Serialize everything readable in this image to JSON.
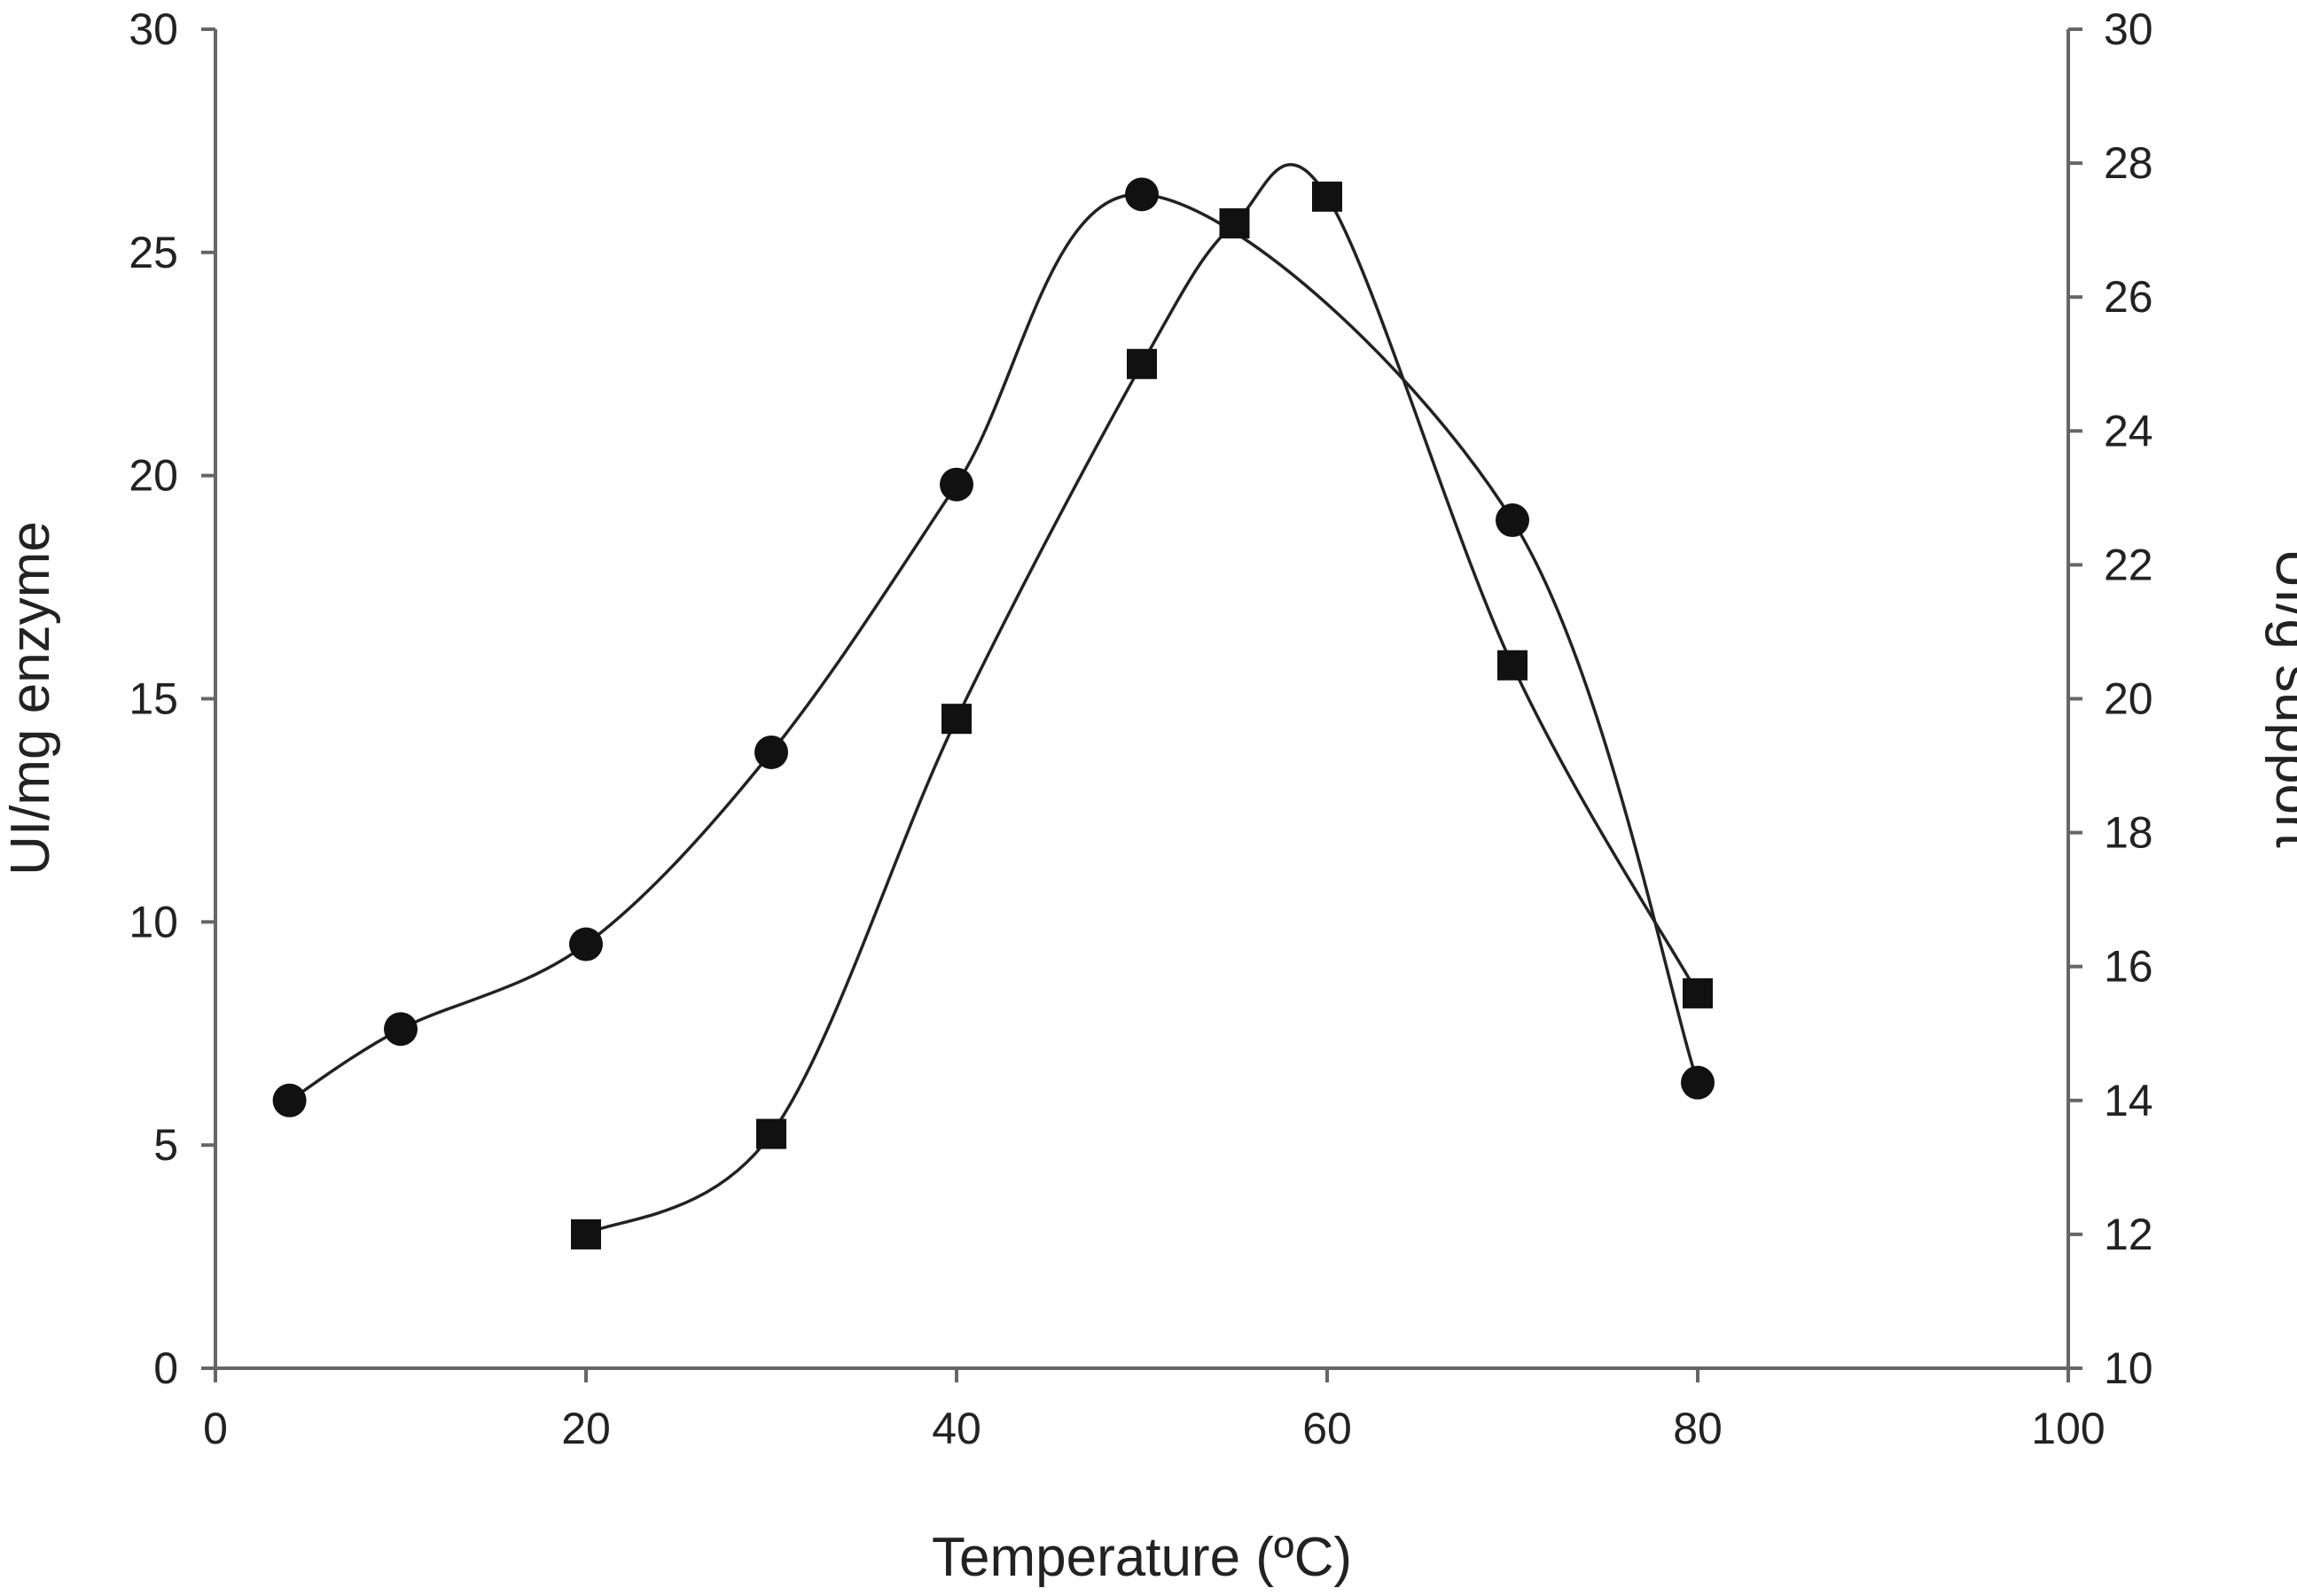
{
  "chart_data": {
    "type": "line",
    "title": "",
    "xlabel": "Temperature (ºC)",
    "ylabel_left": "UI/mg enzyme",
    "ylabel_right": "UI/g support",
    "xlim": [
      0,
      100
    ],
    "ylim_left": [
      0,
      30
    ],
    "ylim_right": [
      10,
      30
    ],
    "x_ticks": [
      "0",
      "20",
      "40",
      "60",
      "80",
      "100"
    ],
    "y_left_ticks": [
      "0",
      "5",
      "10",
      "15",
      "20",
      "25",
      "30"
    ],
    "y_right_ticks": [
      "10",
      "12",
      "14",
      "16",
      "18",
      "20",
      "22",
      "24",
      "26",
      "28",
      "30"
    ],
    "grid": false,
    "series": [
      {
        "name": "UI/mg enzyme",
        "axis": "left",
        "marker": "circle",
        "x": [
          4,
          10,
          20,
          30,
          40,
          50,
          70,
          80
        ],
        "y": [
          6.0,
          7.6,
          9.5,
          13.8,
          19.8,
          26.3,
          19.0,
          6.4
        ]
      },
      {
        "name": "UI/g support",
        "axis": "right",
        "marker": "square",
        "x": [
          20,
          30,
          40,
          50,
          55,
          60,
          70,
          80
        ],
        "y": [
          12.0,
          13.5,
          19.7,
          25.0,
          27.1,
          27.5,
          20.5,
          15.6
        ]
      }
    ]
  }
}
